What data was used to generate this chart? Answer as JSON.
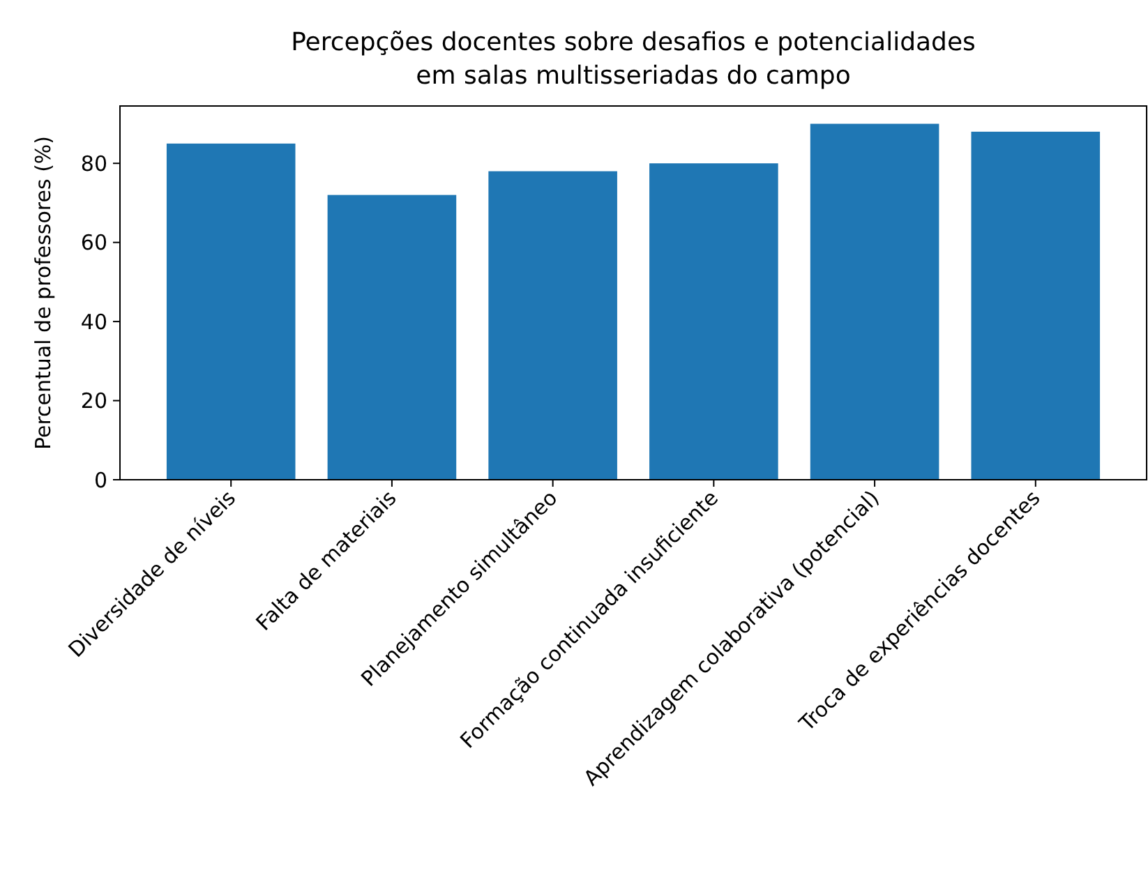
{
  "chart_data": {
    "type": "bar",
    "title": "Percepções docentes sobre desafios e potencialidades\nem salas multisseriadas do campo",
    "ylabel": "Percentual de professores (%)",
    "categories": [
      "Diversidade de níveis",
      "Falta de materiais",
      "Planejamento simultâneo",
      "Formação continuada insuficiente",
      "Aprendizagem colaborativa (potencial)",
      "Troca de experiências docentes"
    ],
    "values": [
      85,
      72,
      78,
      80,
      90,
      88
    ],
    "color": "#1f77b4",
    "ylim": [
      0,
      94.5
    ],
    "yticks": [
      0,
      20,
      40,
      60,
      80
    ]
  }
}
